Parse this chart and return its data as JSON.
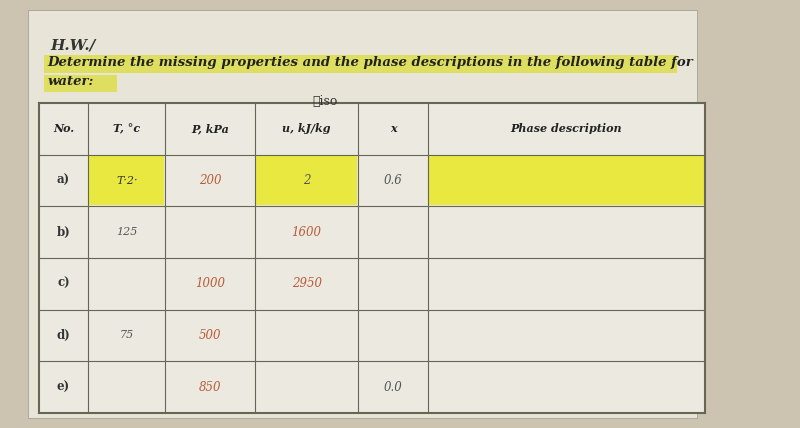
{
  "title_hw": "H.W./",
  "subtitle_line1": "Determine the missing properties and the phase descriptions in the following table for",
  "subtitle_line2": "water:",
  "col_headers": [
    "No.",
    "T, °c",
    "P, kPa",
    "u, kJ/kg",
    "x",
    "Phase description"
  ],
  "rows": [
    {
      "no": "a)",
      "T": "T·2·",
      "P": "200",
      "u": "2",
      "x": "0.6",
      "phase": "",
      "hl_T": true,
      "hl_u": true,
      "hl_phase": true
    },
    {
      "no": "b)",
      "T": "125",
      "P": "",
      "u": "1600",
      "x": "",
      "phase": "",
      "hl_T": false,
      "hl_u": false,
      "hl_phase": false
    },
    {
      "no": "c)",
      "T": "",
      "P": "1000",
      "u": "2950",
      "x": "",
      "phase": "",
      "hl_T": false,
      "hl_u": false,
      "hl_phase": false
    },
    {
      "no": "d)",
      "T": "75",
      "P": "500",
      "u": "",
      "x": "",
      "phase": "",
      "hl_T": false,
      "hl_u": false,
      "hl_phase": false
    },
    {
      "no": "e)",
      "T": "",
      "P": "850",
      "u": "",
      "x": "0.0",
      "phase": "",
      "hl_T": false,
      "hl_u": false,
      "hl_phase": false
    }
  ],
  "given_color": "#b85c38",
  "normal_color": "#555555",
  "header_color": "#222222",
  "highlight_yellow": "#e8e840",
  "bg_page": "#ccc4b0",
  "bg_paper": "#e8e4d8",
  "bg_table_cell": "#eceae0",
  "subtitle_hl": "#dede60"
}
